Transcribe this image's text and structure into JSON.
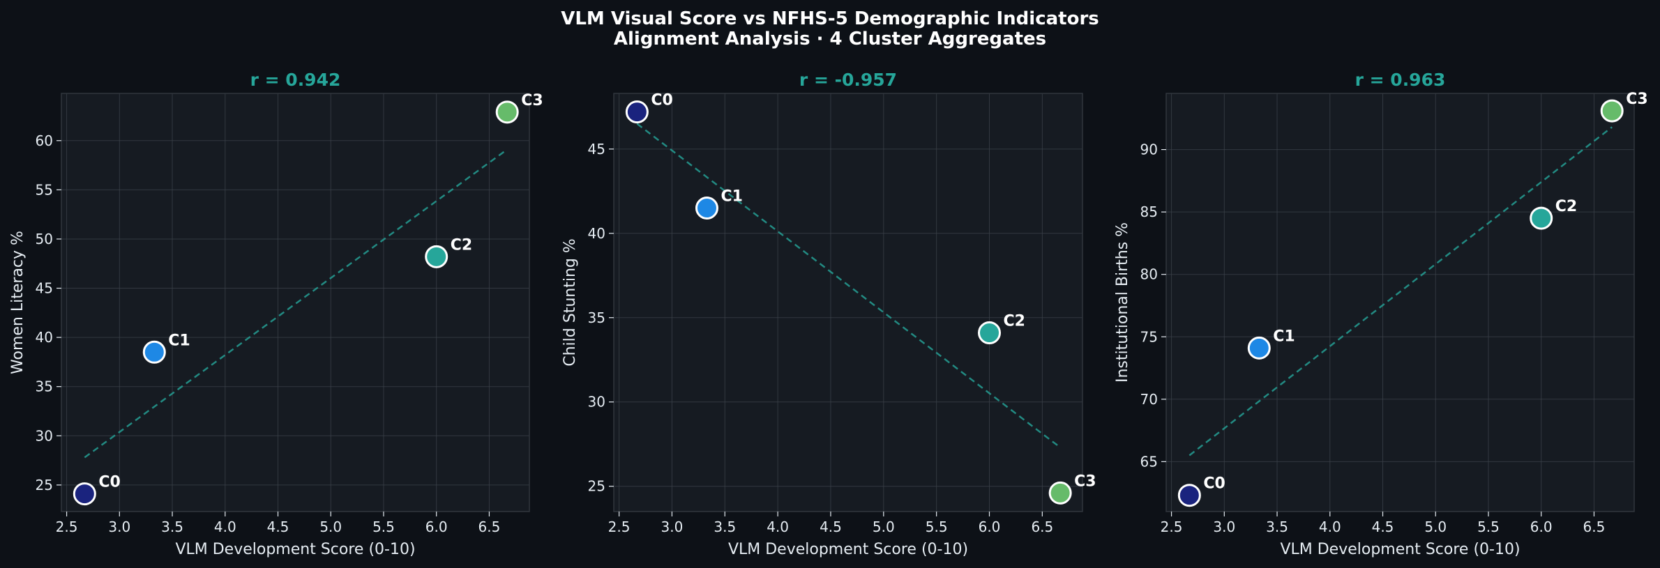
{
  "figure": {
    "title_line1": "VLM Visual Score vs NFHS-5 Demographic Indicators",
    "title_line2": "Alignment Analysis · 4 Cluster Aggregates"
  },
  "colors": {
    "background": "#0d1117",
    "panel": "#161b22",
    "grid": "#3a4048",
    "axis_text": "#e6edf3",
    "title_accent": "#26a69a",
    "trend_line": "#26a69a",
    "C0": "#1a237e",
    "C1": "#1e88e5",
    "C2": "#26a69a",
    "C3": "#66bb6a"
  },
  "chart_data": [
    {
      "type": "scatter",
      "title": "r = 0.942",
      "xlabel": "VLM Development Score (0-10)",
      "ylabel": "Women Literacy %",
      "xlim": [
        2.45,
        6.88
      ],
      "ylim": [
        22.3,
        64.8
      ],
      "xticks": [
        2.5,
        3.0,
        3.5,
        4.0,
        4.5,
        5.0,
        5.5,
        6.0,
        6.5
      ],
      "yticks": [
        25,
        30,
        35,
        40,
        45,
        50,
        55,
        60
      ],
      "grid": true,
      "points": [
        {
          "label": "C0",
          "x": 2.67,
          "y": 24.1
        },
        {
          "label": "C1",
          "x": 3.33,
          "y": 38.5
        },
        {
          "label": "C2",
          "x": 6.0,
          "y": 48.2
        },
        {
          "label": "C3",
          "x": 6.67,
          "y": 62.9
        }
      ],
      "trendline": {
        "x": [
          2.67,
          6.67
        ],
        "y": [
          27.8,
          59.1
        ]
      }
    },
    {
      "type": "scatter",
      "title": "r = -0.957",
      "xlabel": "VLM Development Score (0-10)",
      "ylabel": "Child Stunting %",
      "xlim": [
        2.45,
        6.88
      ],
      "ylim": [
        23.5,
        48.3
      ],
      "xticks": [
        2.5,
        3.0,
        3.5,
        4.0,
        4.5,
        5.0,
        5.5,
        6.0,
        6.5
      ],
      "yticks": [
        25,
        30,
        35,
        40,
        45
      ],
      "grid": true,
      "points": [
        {
          "label": "C0",
          "x": 2.67,
          "y": 47.2
        },
        {
          "label": "C1",
          "x": 3.33,
          "y": 41.5
        },
        {
          "label": "C2",
          "x": 6.0,
          "y": 34.1
        },
        {
          "label": "C3",
          "x": 6.67,
          "y": 24.6
        }
      ],
      "trendline": {
        "x": [
          2.67,
          6.67
        ],
        "y": [
          46.5,
          27.3
        ]
      }
    },
    {
      "type": "scatter",
      "title": "r = 0.963",
      "xlabel": "VLM Development Score (0-10)",
      "ylabel": "Institutional Births %",
      "xlim": [
        2.45,
        6.88
      ],
      "ylim": [
        61.0,
        94.5
      ],
      "xticks": [
        2.5,
        3.0,
        3.5,
        4.0,
        4.5,
        5.0,
        5.5,
        6.0,
        6.5
      ],
      "yticks": [
        65,
        70,
        75,
        80,
        85,
        90
      ],
      "grid": true,
      "points": [
        {
          "label": "C0",
          "x": 2.67,
          "y": 62.3
        },
        {
          "label": "C1",
          "x": 3.33,
          "y": 74.1
        },
        {
          "label": "C2",
          "x": 6.0,
          "y": 84.5
        },
        {
          "label": "C3",
          "x": 6.67,
          "y": 93.1
        }
      ],
      "trendline": {
        "x": [
          2.67,
          6.67
        ],
        "y": [
          65.5,
          91.8
        ]
      }
    }
  ]
}
